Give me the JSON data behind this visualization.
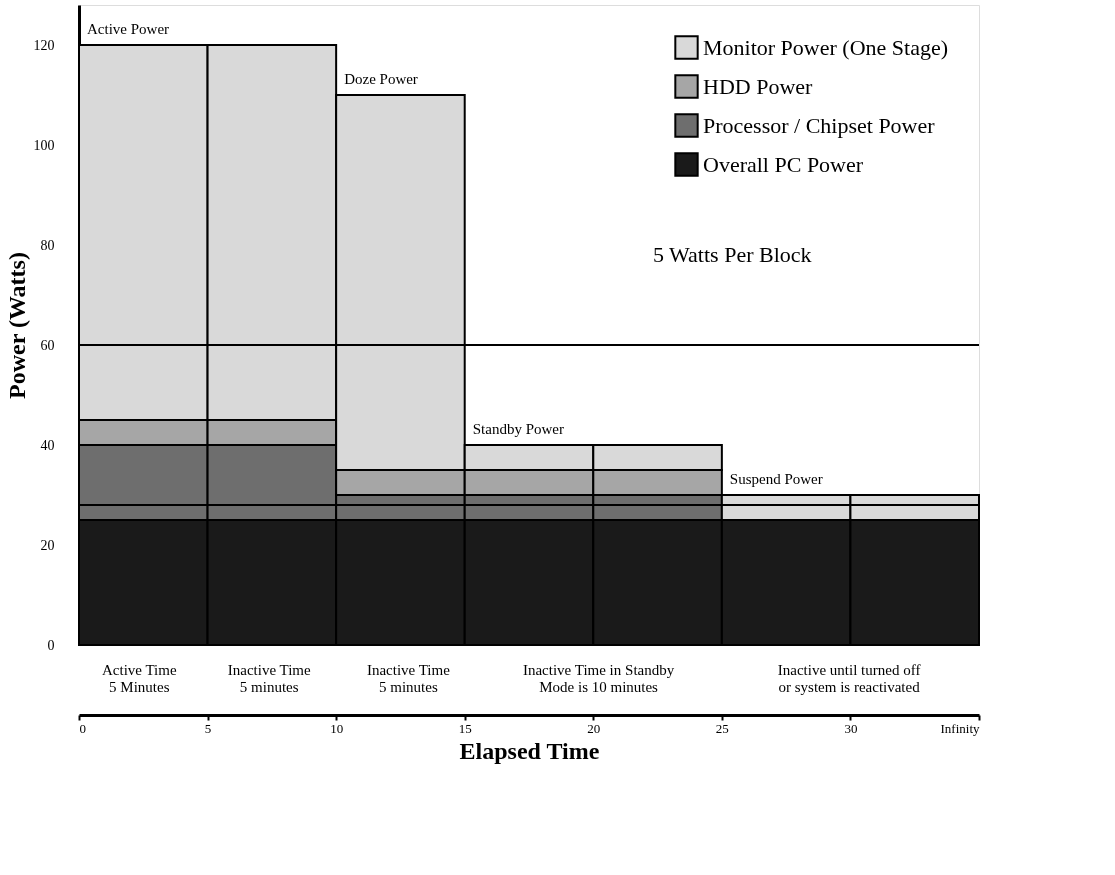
{
  "chart_data": {
    "type": "bar",
    "stacked": true,
    "xlabel": "Elapsed Time",
    "ylabel": "Power (Watts)",
    "x": [
      2.5,
      7.5,
      12.5,
      17.5,
      22.5,
      27.5,
      32.5
    ],
    "xlim": [
      0,
      35
    ],
    "xticks": [
      0,
      5,
      10,
      15,
      20,
      25,
      30,
      {
        "value": 35,
        "label": "Infinity"
      }
    ],
    "ylim": [
      0,
      128
    ],
    "yticks": [
      0,
      20,
      40,
      60,
      80,
      100,
      120
    ],
    "series": [
      {
        "name": "Overall PC Power",
        "color": "#1a1a1a",
        "values": [
          25,
          25,
          25,
          25,
          25,
          25,
          25
        ]
      },
      {
        "name": "Processor / Chipset Power",
        "color": "#6e6e6e",
        "values": [
          15,
          15,
          5,
          5,
          5,
          0,
          0
        ]
      },
      {
        "name": "HDD Power",
        "color": "#a6a6a6",
        "values": [
          5,
          5,
          5,
          5,
          5,
          0,
          0
        ]
      },
      {
        "name": "Monitor Power (One Stage)",
        "color": "#d9d9d9",
        "values": [
          75,
          75,
          75,
          5,
          5,
          5,
          5
        ]
      }
    ],
    "legend": "top right",
    "grid": false,
    "ref_lines": [
      {
        "axis": "y",
        "value": 60,
        "label": null
      },
      {
        "axis": "y",
        "value": 28,
        "label": null
      }
    ],
    "annotations": [
      {
        "text": "Active Power",
        "x": 2.5,
        "y": 120
      },
      {
        "text": "Doze Power",
        "x": 12.5,
        "y": 110
      },
      {
        "text": "Standby Power",
        "x": 17.5,
        "y": 40
      },
      {
        "text": "Suspend Power",
        "x": 27.5,
        "y": 30
      },
      "5 Watts Per Block",
      "Active Time\n5 Minutes",
      "Inactive Time\n5 minutes",
      "Inactive Time\n5 minutes",
      "Inactive Time in Standby\nMode is 10 minutes",
      "Inactive until  turned off\nor system is reactivated"
    ]
  }
}
